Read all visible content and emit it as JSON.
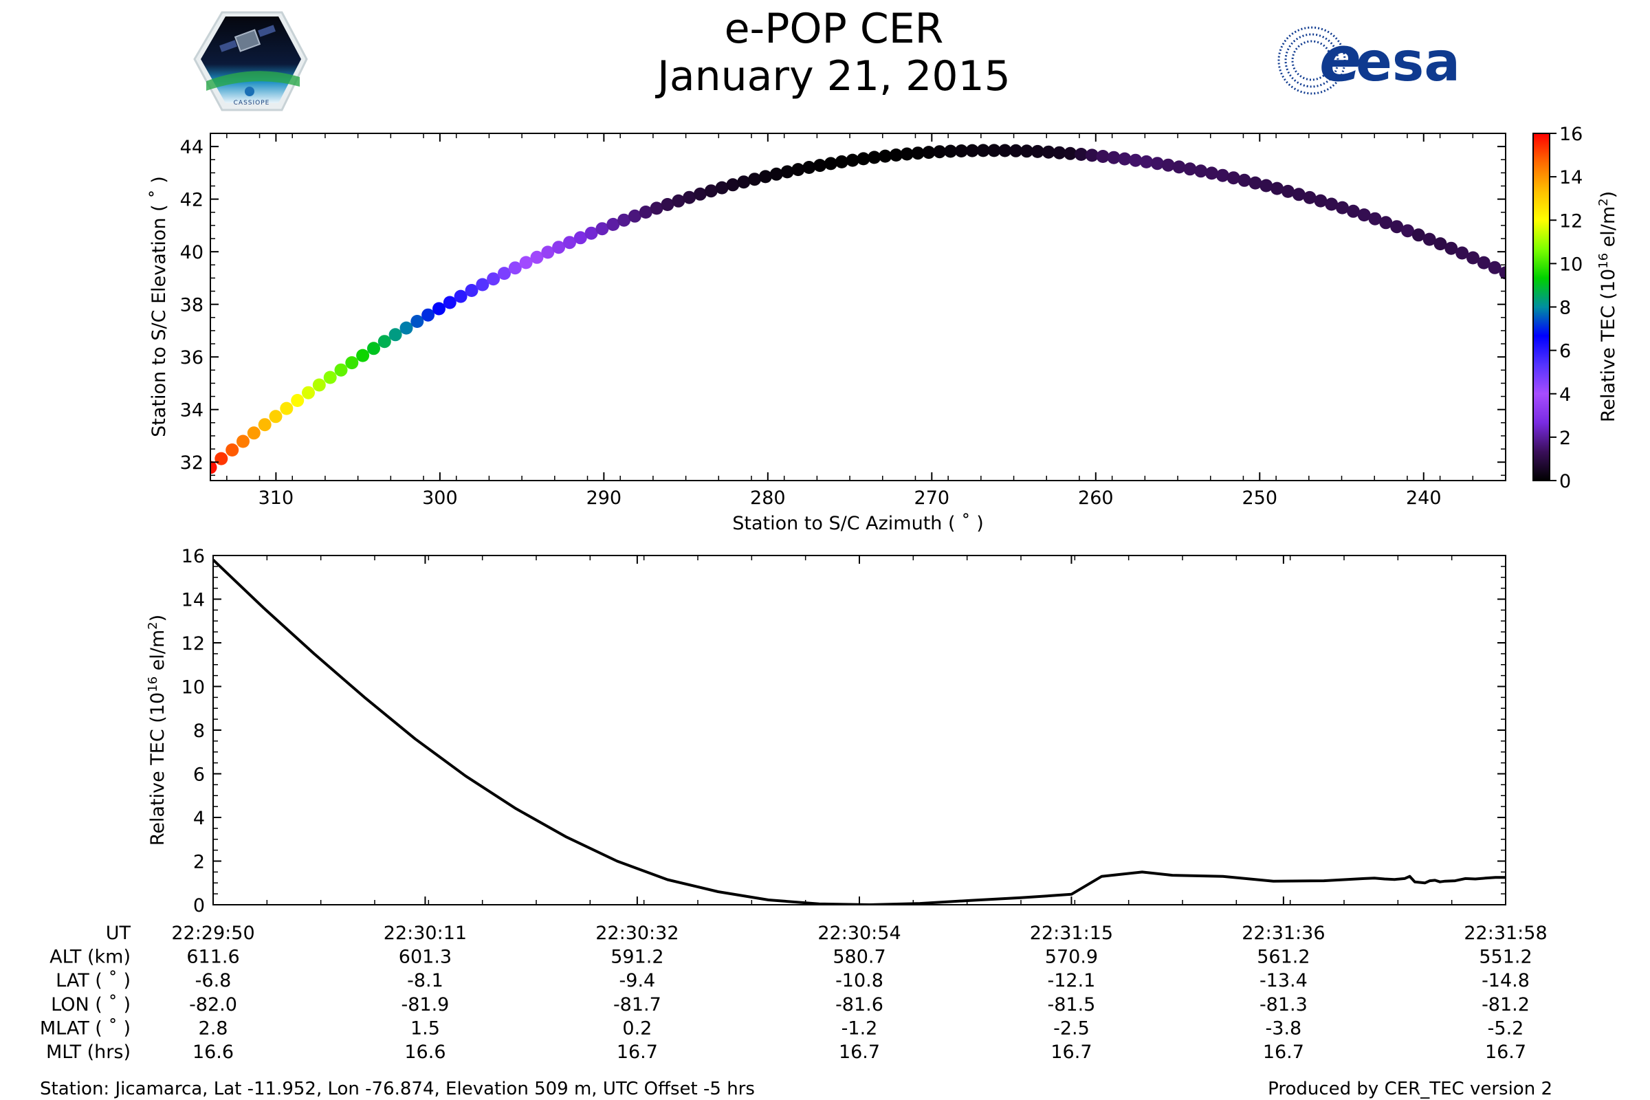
{
  "header": {
    "title_line1": "e-POP CER",
    "title_line2": "January 21, 2015",
    "esa_logo_text": "esa",
    "cassiope_logo_text": "CASSIOPE"
  },
  "colors": {
    "axis": "#000000",
    "colormap": [
      "#000000",
      "#3a0f5a",
      "#7a2be2",
      "#a64dff",
      "#5533ff",
      "#0000ff",
      "#008fa0",
      "#00d000",
      "#7fff00",
      "#ffff00",
      "#ffc000",
      "#ff6a00",
      "#ff0000"
    ],
    "esa_blue": "#0f3a8f"
  },
  "chart_data": [
    {
      "type": "scatter",
      "title": "",
      "xlabel": "Station to S/C Azimuth ( ˚ )",
      "ylabel": "Station to S/C Elevation ( ˚ )",
      "xlim": [
        314,
        235
      ],
      "ylim": [
        31.3,
        44.5
      ],
      "x_ticks": [
        310,
        300,
        290,
        280,
        270,
        260,
        250,
        240
      ],
      "y_ticks": [
        32,
        34,
        36,
        38,
        40,
        42,
        44
      ],
      "color_label": "Relative TEC (10¹⁶ el/m²)",
      "color_label_main": "Relative TEC (10",
      "color_label_exp": "16",
      "color_label_unit": " el/m",
      "color_label_unit_exp": "2",
      "color_label_close": ")",
      "color_range": [
        0,
        16
      ],
      "color_ticks": [
        0,
        2,
        4,
        6,
        8,
        10,
        12,
        14,
        16
      ],
      "trajectory": {
        "azimuth_start": 314.0,
        "azimuth_end": 235.0,
        "elevation_start": 31.8,
        "elevation_peak": 43.85,
        "azimuth_at_peak": 266.5,
        "elevation_end": 39.2,
        "n_points": 120,
        "tec_series_ref": "series.1"
      }
    },
    {
      "type": "line",
      "title": "",
      "xlabel": "UT",
      "ylabel": "Relative TEC (10¹⁶ el/m²)",
      "ylabel_main": "Relative TEC (10",
      "ylabel_exp": "16",
      "ylabel_unit": " el/m",
      "ylabel_unit_exp": "2",
      "ylabel_close": ")",
      "ylim": [
        0,
        16
      ],
      "y_ticks": [
        0,
        2,
        4,
        6,
        8,
        10,
        12,
        14,
        16
      ],
      "x_seconds_range": [
        0,
        128
      ],
      "x_tick_seconds": [
        0,
        21,
        42,
        64,
        85,
        106,
        128
      ],
      "x": [
        0,
        5,
        10,
        15,
        20,
        25,
        30,
        35,
        40,
        45,
        50,
        55,
        60,
        65,
        70,
        75,
        80,
        85,
        88,
        92,
        95,
        100,
        105,
        110,
        112,
        114,
        115,
        116,
        117,
        118,
        118.5,
        119,
        120,
        120.5,
        121,
        121.5,
        122,
        123,
        124,
        125,
        126,
        127,
        128
      ],
      "values": [
        15.8,
        13.6,
        11.5,
        9.5,
        7.6,
        5.9,
        4.4,
        3.1,
        2.0,
        1.15,
        0.6,
        0.22,
        0.04,
        0.0,
        0.06,
        0.2,
        0.32,
        0.48,
        1.3,
        1.5,
        1.35,
        1.3,
        1.08,
        1.1,
        1.15,
        1.2,
        1.22,
        1.18,
        1.16,
        1.2,
        1.3,
        1.05,
        1.0,
        1.1,
        1.12,
        1.05,
        1.08,
        1.1,
        1.2,
        1.18,
        1.22,
        1.25,
        1.25
      ],
      "series": [
        {
          "name": "Relative TEC",
          "values": "values"
        }
      ]
    }
  ],
  "info_table": {
    "row_labels": [
      "UT",
      "ALT (km)",
      "LAT ( ˚ )",
      "LON ( ˚ )",
      "MLAT ( ˚ )",
      "MLT (hrs)"
    ],
    "columns": [
      [
        "22:29:50",
        "611.6",
        "-6.8",
        "-82.0",
        "2.8",
        "16.6"
      ],
      [
        "22:30:11",
        "601.3",
        "-8.1",
        "-81.9",
        "1.5",
        "16.6"
      ],
      [
        "22:30:32",
        "591.2",
        "-9.4",
        "-81.7",
        "0.2",
        "16.7"
      ],
      [
        "22:30:54",
        "580.7",
        "-10.8",
        "-81.6",
        "-1.2",
        "16.7"
      ],
      [
        "22:31:15",
        "570.9",
        "-12.1",
        "-81.5",
        "-2.5",
        "16.7"
      ],
      [
        "22:31:36",
        "561.2",
        "-13.4",
        "-81.3",
        "-3.8",
        "16.7"
      ],
      [
        "22:31:58",
        "551.2",
        "-14.8",
        "-81.2",
        "-5.2",
        "16.7"
      ]
    ]
  },
  "footer": {
    "station": "Station: Jicamarca, Lat -11.952, Lon -76.874, Elevation 509 m, UTC Offset -5 hrs",
    "produced_by": "Produced by CER_TEC version 2"
  }
}
